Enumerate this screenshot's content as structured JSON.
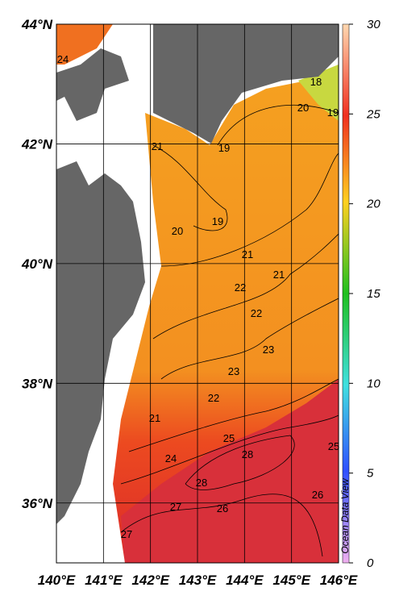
{
  "map": {
    "lon_ticks": [
      {
        "value": 140,
        "label": "140°E"
      },
      {
        "value": 141,
        "label": "141°E"
      },
      {
        "value": 142,
        "label": "142°E"
      },
      {
        "value": 143,
        "label": "143°E"
      },
      {
        "value": 144,
        "label": "144°E"
      },
      {
        "value": 145,
        "label": "145°E"
      },
      {
        "value": 146,
        "label": "146°E"
      }
    ],
    "lat_ticks": [
      {
        "value": 44,
        "label": "44°N"
      },
      {
        "value": 42,
        "label": "42°N"
      },
      {
        "value": 40,
        "label": "40°N"
      },
      {
        "value": 38,
        "label": "38°N"
      },
      {
        "value": 36,
        "label": "36°N"
      }
    ],
    "lon_lim": [
      140,
      146
    ],
    "lat_lim": [
      35,
      44
    ],
    "colorbar": {
      "lim": [
        0,
        30
      ],
      "ticks": [
        0,
        5,
        10,
        15,
        20,
        25,
        30
      ]
    },
    "contour_labels": [
      24,
      18,
      20,
      19,
      21,
      19,
      19,
      20,
      21,
      21,
      22,
      22,
      23,
      23,
      22,
      21,
      25,
      28,
      24,
      28,
      27,
      26,
      26,
      25,
      27
    ],
    "credit": "Ocean Data View"
  }
}
